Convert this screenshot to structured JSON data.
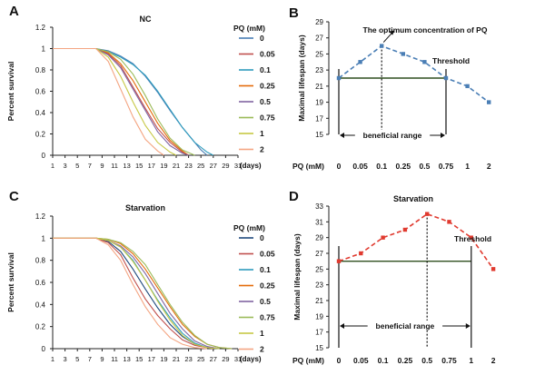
{
  "panels": [
    {
      "letter": "A",
      "chart_data": {
        "type": "line",
        "title": "NC",
        "ylabel": "Percent survival",
        "xlabel": "(days)",
        "ylim": [
          0,
          1.2
        ],
        "yticks": [
          0,
          0.2,
          0.4,
          0.6,
          0.8,
          1,
          1.2
        ],
        "xticks": [
          1,
          3,
          5,
          7,
          9,
          11,
          13,
          15,
          17,
          19,
          21,
          23,
          25,
          27,
          29,
          31
        ],
        "xlim": [
          1,
          31
        ],
        "legend_title": "PQ (mM)",
        "legend_position": "right",
        "series": [
          {
            "name": "0",
            "color": "#4a7eb5",
            "x": [
              1,
              8,
              10,
              12,
              14,
              16,
              18,
              20,
              22,
              24,
              25,
              26
            ],
            "y": [
              1,
              1,
              0.98,
              0.93,
              0.86,
              0.74,
              0.59,
              0.42,
              0.26,
              0.12,
              0.05,
              0
            ]
          },
          {
            "name": "0.05",
            "color": "#c0504d",
            "x": [
              1,
              8,
              10,
              12,
              14,
              16,
              18,
              20,
              22,
              23
            ],
            "y": [
              1,
              1,
              0.95,
              0.84,
              0.64,
              0.44,
              0.25,
              0.12,
              0.03,
              0
            ]
          },
          {
            "name": "0.1",
            "color": "#2e9bbd",
            "x": [
              1,
              8,
              10,
              12,
              14,
              16,
              18,
              20,
              22,
              24,
              26,
              27
            ],
            "y": [
              1,
              1,
              0.97,
              0.92,
              0.85,
              0.75,
              0.6,
              0.43,
              0.26,
              0.12,
              0.03,
              0
            ]
          },
          {
            "name": "0.25",
            "color": "#e46c0a",
            "x": [
              1,
              8,
              10,
              12,
              14,
              16,
              18,
              20,
              22,
              23
            ],
            "y": [
              1,
              1,
              0.96,
              0.86,
              0.7,
              0.5,
              0.3,
              0.14,
              0.04,
              0
            ]
          },
          {
            "name": "0.5",
            "color": "#8064a2",
            "x": [
              1,
              8,
              10,
              12,
              14,
              16,
              18,
              20,
              22,
              23
            ],
            "y": [
              1,
              1,
              0.94,
              0.82,
              0.62,
              0.42,
              0.22,
              0.09,
              0.02,
              0
            ]
          },
          {
            "name": "0.75",
            "color": "#9bbb59",
            "x": [
              1,
              8,
              10,
              12,
              14,
              16,
              18,
              20,
              22,
              24
            ],
            "y": [
              1,
              1,
              0.97,
              0.9,
              0.76,
              0.56,
              0.34,
              0.16,
              0.05,
              0
            ]
          },
          {
            "name": "1",
            "color": "#c6c844",
            "x": [
              1,
              8,
              10,
              12,
              14,
              16,
              18,
              20,
              21
            ],
            "y": [
              1,
              1,
              0.92,
              0.74,
              0.5,
              0.28,
              0.12,
              0.03,
              0
            ]
          },
          {
            "name": "2",
            "color": "#f4a582",
            "x": [
              1,
              8,
              10,
              12,
              14,
              16,
              18,
              19
            ],
            "y": [
              1,
              1,
              0.88,
              0.62,
              0.36,
              0.15,
              0.04,
              0
            ]
          }
        ]
      }
    },
    {
      "letter": "B",
      "chart_data": {
        "type": "line",
        "title": "",
        "ylabel": "Maximal lifespan (days)",
        "xlabel": "PQ (mM)",
        "ylim": [
          15,
          29
        ],
        "yticks": [
          15,
          17,
          19,
          21,
          23,
          25,
          27,
          29
        ],
        "categories": [
          "0",
          "0.05",
          "0.1",
          "0.25",
          "0.5",
          "0.75",
          "1",
          "2"
        ],
        "series": [
          {
            "name": "",
            "color": "#4a7eb5",
            "values": [
              22,
              24,
              26,
              25,
              24,
              22,
              21,
              19
            ]
          }
        ],
        "reference_line": 22,
        "annotations": {
          "optimum": "The optimum concentration of PQ",
          "threshold": "Threshold",
          "beneficial_range": "beneficial range"
        }
      }
    },
    {
      "letter": "C",
      "chart_data": {
        "type": "line",
        "title": "Starvation",
        "ylabel": "Percent survival",
        "xlabel": "(days)",
        "ylim": [
          0,
          1.2
        ],
        "yticks": [
          0,
          0.2,
          0.4,
          0.6,
          0.8,
          1,
          1.2
        ],
        "xticks": [
          1,
          3,
          5,
          7,
          9,
          11,
          13,
          15,
          17,
          19,
          21,
          23,
          25,
          27,
          29,
          31
        ],
        "xlim": [
          1,
          31
        ],
        "legend_title": "PQ (mM)",
        "legend_position": "right",
        "series": [
          {
            "name": "0",
            "color": "#1f497d",
            "x": [
              1,
              8,
              10,
              12,
              14,
              16,
              18,
              20,
              22,
              24,
              26,
              28
            ],
            "y": [
              1,
              1,
              0.97,
              0.88,
              0.72,
              0.54,
              0.37,
              0.22,
              0.11,
              0.04,
              0.01,
              0
            ]
          },
          {
            "name": "0.05",
            "color": "#c0504d",
            "x": [
              1,
              8,
              10,
              12,
              14,
              16,
              18,
              20,
              22,
              24,
              26,
              27
            ],
            "y": [
              1,
              1,
              0.96,
              0.85,
              0.64,
              0.45,
              0.3,
              0.18,
              0.08,
              0.03,
              0.01,
              0
            ]
          },
          {
            "name": "0.1",
            "color": "#2e9bbd",
            "x": [
              1,
              8,
              10,
              12,
              14,
              16,
              18,
              20,
              22,
              24,
              26,
              28
            ],
            "y": [
              1,
              1,
              0.98,
              0.92,
              0.8,
              0.62,
              0.44,
              0.28,
              0.14,
              0.05,
              0.01,
              0
            ]
          },
          {
            "name": "0.25",
            "color": "#e46c0a",
            "x": [
              1,
              8,
              10,
              12,
              14,
              16,
              18,
              20,
              22,
              24,
              26,
              28,
              30
            ],
            "y": [
              1,
              1,
              0.99,
              0.95,
              0.86,
              0.72,
              0.55,
              0.38,
              0.22,
              0.11,
              0.04,
              0.01,
              0
            ]
          },
          {
            "name": "0.5",
            "color": "#8064a2",
            "x": [
              1,
              8,
              10,
              12,
              14,
              16,
              18,
              20,
              22,
              24,
              26,
              28
            ],
            "y": [
              1,
              1,
              0.98,
              0.93,
              0.83,
              0.68,
              0.5,
              0.32,
              0.18,
              0.07,
              0.02,
              0
            ]
          },
          {
            "name": "0.75",
            "color": "#9bbb59",
            "x": [
              1,
              8,
              10,
              12,
              14,
              16,
              18,
              20,
              22,
              24,
              26,
              28,
              30
            ],
            "y": [
              1,
              1,
              0.99,
              0.96,
              0.88,
              0.76,
              0.58,
              0.4,
              0.24,
              0.12,
              0.04,
              0.01,
              0
            ]
          },
          {
            "name": "1",
            "color": "#c6c844",
            "x": [
              1,
              8,
              10,
              12,
              14,
              16,
              18,
              20,
              22,
              24,
              26,
              28
            ],
            "y": [
              1,
              1,
              0.98,
              0.92,
              0.79,
              0.62,
              0.43,
              0.26,
              0.12,
              0.04,
              0.01,
              0
            ]
          },
          {
            "name": "2",
            "color": "#f4a582",
            "x": [
              1,
              8,
              10,
              12,
              14,
              16,
              18,
              20,
              22,
              24,
              26
            ],
            "y": [
              1,
              1,
              0.94,
              0.8,
              0.58,
              0.38,
              0.22,
              0.1,
              0.04,
              0.01,
              0
            ]
          }
        ]
      }
    },
    {
      "letter": "D",
      "chart_data": {
        "type": "line",
        "title": "Starvation",
        "ylabel": "Maximal lifespan (days)",
        "xlabel": "PQ (mM)",
        "ylim": [
          15,
          33
        ],
        "yticks": [
          15,
          17,
          19,
          21,
          23,
          25,
          27,
          29,
          31,
          33
        ],
        "categories": [
          "0",
          "0.05",
          "0.1",
          "0.25",
          "0.5",
          "0.75",
          "1",
          "2"
        ],
        "series": [
          {
            "name": "",
            "color": "#e03a2f",
            "values": [
              26,
              27,
              29,
              30,
              32,
              31,
              29,
              25
            ]
          }
        ],
        "reference_line": 26,
        "annotations": {
          "threshold": "Threshold",
          "beneficial_range": "beneficial range"
        }
      }
    }
  ]
}
